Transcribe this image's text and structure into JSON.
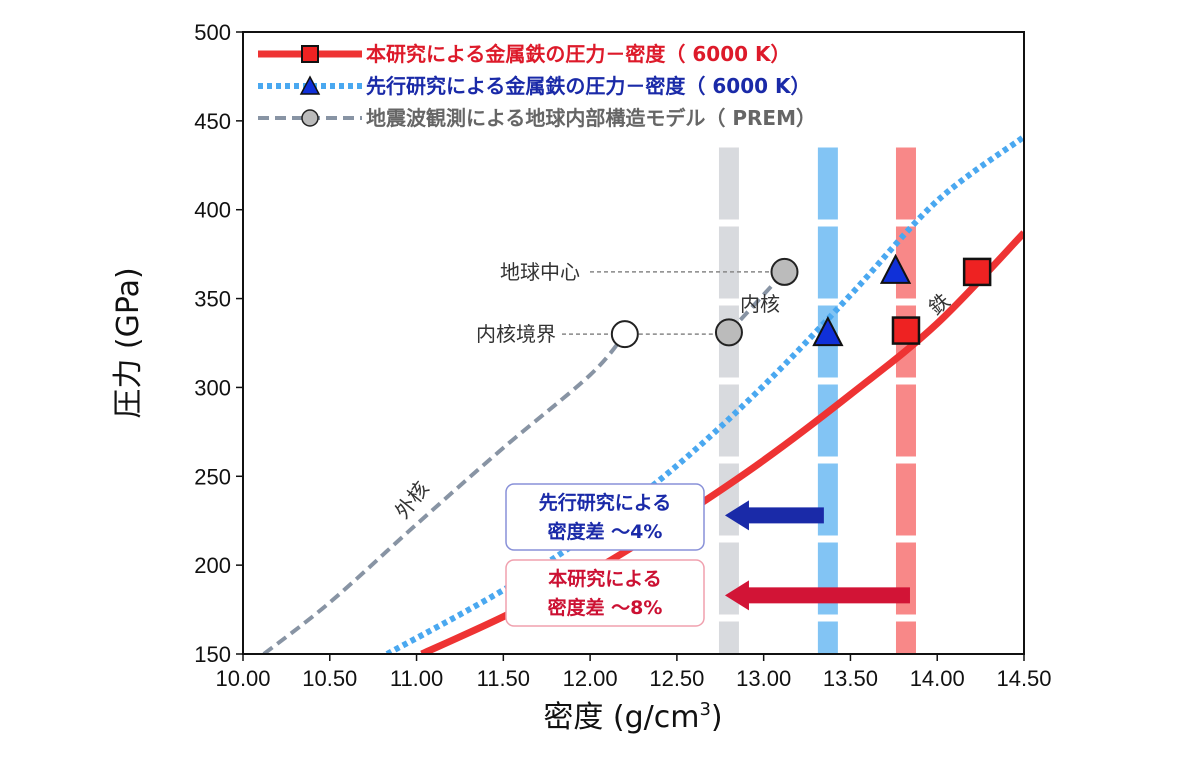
{
  "chart_data": {
    "type": "line",
    "xlabel": "密度 (g/cm",
    "xlabel_sup": "3",
    "xlabel_close": ")",
    "ylabel": "圧力 (GPa)",
    "xlim": [
      10.0,
      14.5
    ],
    "ylim": [
      150,
      500
    ],
    "xticks": [
      "10.00",
      "10.50",
      "11.00",
      "11.50",
      "12.00",
      "12.50",
      "13.00",
      "13.50",
      "14.00",
      "14.50"
    ],
    "yticks": [
      "150",
      "200",
      "250",
      "300",
      "350",
      "400",
      "450",
      "500"
    ],
    "series": [
      {
        "name": "本研究による金属鉄の圧力－密度（ 6000 K）",
        "color": "#ee3333",
        "style": "solid",
        "line": [
          [
            11.03,
            150
          ],
          [
            11.5,
            171
          ],
          [
            12.0,
            196
          ],
          [
            12.5,
            226
          ],
          [
            13.0,
            259
          ],
          [
            13.5,
            296
          ],
          [
            14.0,
            336
          ],
          [
            14.5,
            387
          ]
        ],
        "points": [
          [
            13.82,
            332
          ],
          [
            14.23,
            365
          ]
        ]
      },
      {
        "name": "先行研究による金属鉄の圧力－密度（ 6000 K）",
        "color": "#4aa8f0",
        "style": "dotted",
        "line": [
          [
            10.83,
            150
          ],
          [
            11.5,
            186
          ],
          [
            12.0,
            218
          ],
          [
            12.5,
            256
          ],
          [
            13.0,
            301
          ],
          [
            13.5,
            352
          ],
          [
            14.0,
            405
          ],
          [
            14.5,
            441
          ]
        ],
        "points": [
          [
            13.37,
            330
          ],
          [
            13.76,
            365
          ]
        ]
      },
      {
        "name": "地震波観測による地球内部構造モデル（ PREM）",
        "color": "#8894a4",
        "style": "dashed",
        "line": [
          [
            10.12,
            150
          ],
          [
            10.5,
            179
          ],
          [
            11.0,
            223
          ],
          [
            11.5,
            266
          ],
          [
            12.0,
            307
          ],
          [
            12.2,
            330
          ]
        ],
        "line2": [
          [
            12.8,
            331
          ],
          [
            13.12,
            365
          ]
        ],
        "points": [
          [
            12.2,
            330
          ],
          [
            12.8,
            331
          ],
          [
            13.12,
            365
          ]
        ],
        "hollow_index": 0
      }
    ],
    "bands": [
      {
        "x": 12.8,
        "color": "#d8dade"
      },
      {
        "x": 13.37,
        "color": "#82c4f4"
      },
      {
        "x": 13.82,
        "color": "#f88888"
      }
    ],
    "annotations": {
      "center": {
        "label": "地球中心",
        "y": 365
      },
      "icb": {
        "label": "内核境界",
        "y": 330
      },
      "inner_core": "内核",
      "outer_core": "外核",
      "iron": "鉄"
    },
    "diff_boxes": [
      {
        "line1": "先行研究による",
        "line2": "密度差 ～4%",
        "color": "#1a2aa8",
        "border": "#8890d8"
      },
      {
        "line1": "本研究による",
        "line2": "密度差 ～8%",
        "color": "#cc1133",
        "border": "#f0a0ae"
      }
    ]
  }
}
